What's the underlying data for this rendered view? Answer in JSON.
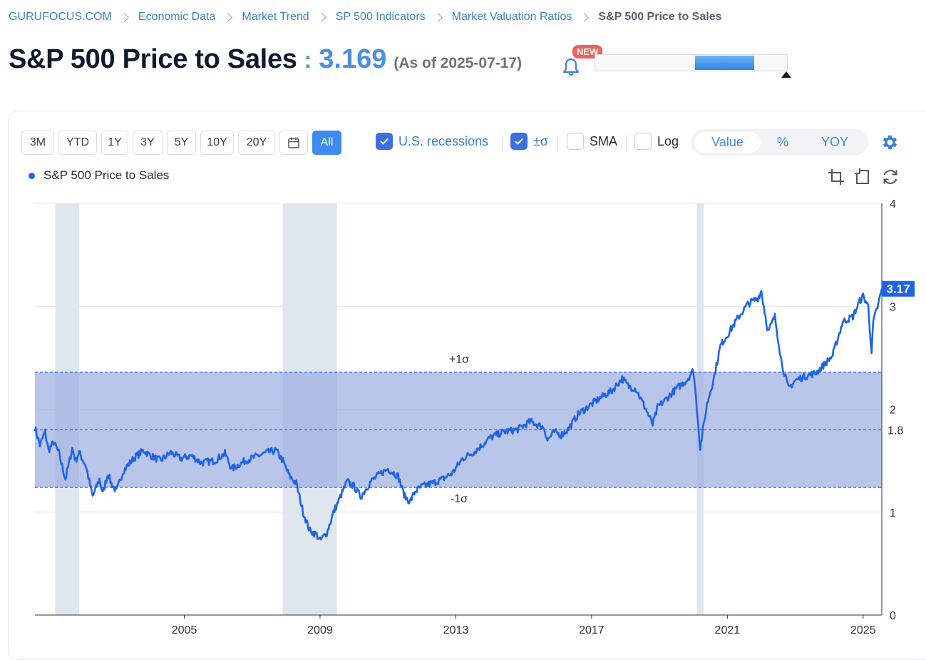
{
  "breadcrumb": [
    "GURUFOCUS.COM",
    "Economic Data",
    "Market Trend",
    "SP 500 Indicators",
    "Market Valuation Ratios",
    "S&P 500 Price to Sales"
  ],
  "header": {
    "title": "S&P 500 Price to Sales",
    "colon": ":",
    "value": "3.169",
    "as_of": "(As of 2025-07-17)",
    "new_badge": "NEW"
  },
  "range_slider": {
    "start_fraction": 0.52,
    "end_fraction": 0.83
  },
  "range_buttons": [
    "3M",
    "YTD",
    "1Y",
    "3Y",
    "5Y",
    "10Y",
    "20Y"
  ],
  "range_all": "All",
  "options": {
    "recessions": {
      "label": "U.S. recessions",
      "checked": true
    },
    "sigma": {
      "label": "±σ",
      "checked": true
    },
    "sma": {
      "label": "SMA",
      "checked": false
    },
    "log": {
      "label": "Log",
      "checked": false
    }
  },
  "view_modes": [
    "Value",
    "%",
    "YOY"
  ],
  "active_view": "Value",
  "legend": {
    "series_name": "S&P 500 Price to Sales"
  },
  "colors": {
    "accent": "#3d8bf0",
    "series": "#1f64e6",
    "band": "#9aaae0",
    "recession": "#dfe6ee"
  },
  "icons": [
    "bell-icon",
    "calendar-icon",
    "gear-icon",
    "crop-icon",
    "undo-icon",
    "refresh-icon"
  ],
  "chart_data": {
    "type": "line",
    "title": "",
    "xlabel": "",
    "ylabel": "",
    "x_range": [
      2000.6,
      2025.55
    ],
    "ylim": [
      0,
      4
    ],
    "y_ticks": [
      0,
      1,
      2,
      3,
      4
    ],
    "x_ticks": [
      "2005",
      "2009",
      "2013",
      "2017",
      "2021",
      "2025"
    ],
    "mean": 1.8,
    "mean_label": "1.8",
    "plus_sigma": 2.36,
    "minus_sigma": 1.24,
    "plus_sigma_label": "+1σ",
    "minus_sigma_label": "-1σ",
    "last_value_label": "3.17",
    "recessions": [
      [
        2001.2,
        2001.9
      ],
      [
        2007.9,
        2009.5
      ],
      [
        2020.1,
        2020.3
      ]
    ],
    "series": [
      {
        "name": "S&P 500 Price to Sales",
        "x": [
          2000.6,
          2000.75,
          2000.9,
          2001.0,
          2001.15,
          2001.3,
          2001.5,
          2001.7,
          2001.8,
          2001.9,
          2002.1,
          2002.3,
          2002.5,
          2002.6,
          2002.75,
          2002.85,
          2003.0,
          2003.2,
          2003.5,
          2003.8,
          2004.0,
          2004.3,
          2004.6,
          2004.9,
          2005.2,
          2005.5,
          2005.9,
          2006.2,
          2006.4,
          2006.8,
          2007.2,
          2007.45,
          2007.7,
          2007.9,
          2008.1,
          2008.3,
          2008.5,
          2008.7,
          2008.9,
          2009.0,
          2009.2,
          2009.4,
          2009.6,
          2009.8,
          2010.0,
          2010.2,
          2010.5,
          2010.8,
          2011.0,
          2011.3,
          2011.5,
          2011.65,
          2011.8,
          2012.0,
          2012.3,
          2012.6,
          2012.9,
          2013.2,
          2013.6,
          2014.0,
          2014.4,
          2014.8,
          2015.2,
          2015.6,
          2015.7,
          2015.9,
          2016.1,
          2016.3,
          2016.6,
          2017.0,
          2017.3,
          2017.6,
          2017.9,
          2018.1,
          2018.3,
          2018.6,
          2018.8,
          2018.95,
          2019.2,
          2019.5,
          2019.8,
          2020.0,
          2020.12,
          2020.2,
          2020.4,
          2020.6,
          2020.8,
          2021.0,
          2021.3,
          2021.6,
          2021.9,
          2022.0,
          2022.2,
          2022.4,
          2022.6,
          2022.8,
          2023.0,
          2023.3,
          2023.6,
          2023.9,
          2024.1,
          2024.4,
          2024.7,
          2024.9,
          2025.0,
          2025.15,
          2025.25,
          2025.3,
          2025.45,
          2025.55
        ],
        "y": [
          1.82,
          1.65,
          1.78,
          1.6,
          1.68,
          1.58,
          1.32,
          1.62,
          1.5,
          1.58,
          1.45,
          1.15,
          1.32,
          1.18,
          1.38,
          1.28,
          1.2,
          1.4,
          1.52,
          1.6,
          1.55,
          1.5,
          1.58,
          1.52,
          1.55,
          1.48,
          1.5,
          1.57,
          1.42,
          1.5,
          1.55,
          1.58,
          1.6,
          1.5,
          1.35,
          1.28,
          1.0,
          0.82,
          0.78,
          0.72,
          0.8,
          1.0,
          1.15,
          1.3,
          1.25,
          1.15,
          1.3,
          1.38,
          1.42,
          1.35,
          1.15,
          1.1,
          1.2,
          1.25,
          1.28,
          1.32,
          1.38,
          1.52,
          1.6,
          1.72,
          1.78,
          1.8,
          1.88,
          1.82,
          1.7,
          1.78,
          1.75,
          1.8,
          1.95,
          2.05,
          2.12,
          2.18,
          2.3,
          2.22,
          2.2,
          2.0,
          1.85,
          2.02,
          2.1,
          2.2,
          2.28,
          2.38,
          1.95,
          1.62,
          2.05,
          2.3,
          2.62,
          2.72,
          2.88,
          3.02,
          3.08,
          3.15,
          2.75,
          2.9,
          2.45,
          2.2,
          2.28,
          2.32,
          2.35,
          2.45,
          2.52,
          2.85,
          2.9,
          3.05,
          3.1,
          3.0,
          2.55,
          2.85,
          3.02,
          3.17
        ]
      }
    ]
  }
}
